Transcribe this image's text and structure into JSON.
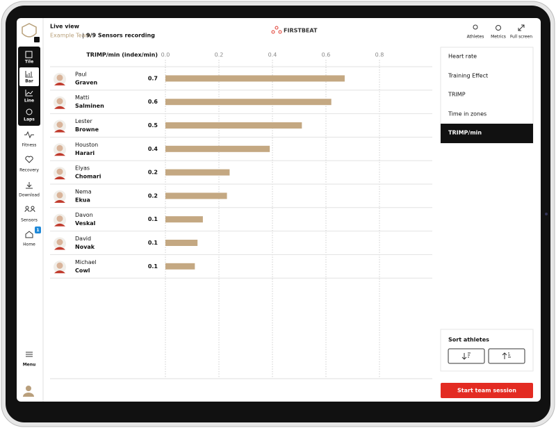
{
  "header": {
    "title": "Live view",
    "team": "Example Team",
    "separator": "|",
    "status": "9/9 Sensors recording",
    "logo": "FIRSTBEAT",
    "actions": [
      "Athletes",
      "Metrics",
      "Full screen"
    ]
  },
  "sidebar": {
    "views": [
      "Tile",
      "Bar",
      "Line",
      "Laps"
    ],
    "items": [
      "Fitness",
      "Recovery",
      "Download",
      "Sensors",
      "Home"
    ],
    "home_badge": 1,
    "menu": "Menu"
  },
  "metrics_menu": {
    "items": [
      "Heart rate",
      "Training Effect",
      "TRIMP",
      "Time in zones",
      "TRIMP/min"
    ]
  },
  "sort": {
    "title": "Sort athletes"
  },
  "start_button": "Start team session",
  "chart_data": {
    "type": "bar",
    "orientation": "horizontal",
    "title": "TRIMP/min (index/min)",
    "athletes": [
      {
        "first_name": "Paul",
        "last_name": "Graven"
      },
      {
        "first_name": "Matti",
        "last_name": "Salminen"
      },
      {
        "first_name": "Lester",
        "last_name": "Browne"
      },
      {
        "first_name": "Houston",
        "last_name": "Harari"
      },
      {
        "first_name": "Elyas",
        "last_name": "Chomari"
      },
      {
        "first_name": "Nema",
        "last_name": "Ekua"
      },
      {
        "first_name": "Davon",
        "last_name": "Veskal"
      },
      {
        "first_name": "David",
        "last_name": "Novak"
      },
      {
        "first_name": "Michael",
        "last_name": "Cowl"
      }
    ],
    "values": [
      0.67,
      0.62,
      0.51,
      0.39,
      0.24,
      0.23,
      0.14,
      0.12,
      0.11
    ],
    "value_labels": [
      "0.7",
      "0.6",
      "0.5",
      "0.4",
      "0.2",
      "0.2",
      "0.1",
      "0.1",
      "0.1"
    ],
    "color": "#c4a882",
    "xlim": [
      0,
      0.8
    ],
    "xticks": [
      {
        "value": 0,
        "label": "0.0"
      },
      0.2,
      0.4,
      0.6,
      0.8
    ],
    "grid": true
  }
}
